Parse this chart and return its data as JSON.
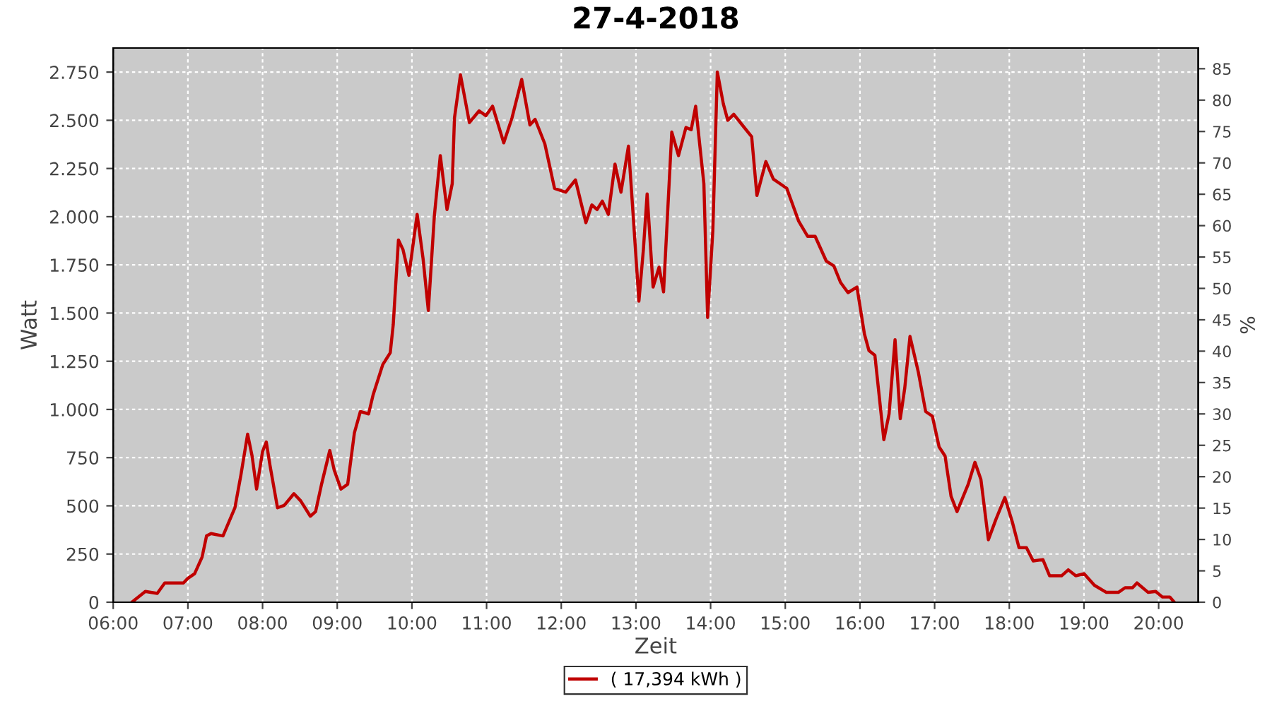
{
  "chart_data": {
    "type": "line",
    "title": "27-4-2018",
    "xlabel": "Zeit",
    "ylabel": "Watt",
    "y2label": "%",
    "x": [
      6.25,
      6.43,
      6.59,
      6.69,
      6.94,
      7.0,
      7.09,
      7.19,
      7.25,
      7.31,
      7.47,
      7.63,
      7.71,
      7.8,
      7.86,
      7.92,
      8.0,
      8.05,
      8.1,
      8.2,
      8.29,
      8.42,
      8.51,
      8.64,
      8.71,
      8.79,
      8.9,
      8.96,
      9.05,
      9.14,
      9.23,
      9.31,
      9.42,
      9.48,
      9.61,
      9.71,
      9.75,
      9.82,
      9.88,
      9.96,
      10.07,
      10.15,
      10.22,
      10.3,
      10.38,
      10.47,
      10.54,
      10.57,
      10.65,
      10.77,
      10.9,
      10.99,
      11.08,
      11.23,
      11.34,
      11.47,
      11.58,
      11.65,
      11.78,
      11.91,
      12.06,
      12.19,
      12.33,
      12.41,
      12.48,
      12.55,
      12.63,
      12.72,
      12.8,
      12.9,
      12.96,
      13.04,
      13.1,
      13.15,
      13.23,
      13.31,
      13.37,
      13.48,
      13.57,
      13.67,
      13.74,
      13.8,
      13.91,
      13.96,
      14.03,
      14.09,
      14.17,
      14.23,
      14.31,
      14.45,
      14.55,
      14.62,
      14.74,
      14.84,
      15.02,
      15.18,
      15.3,
      15.4,
      15.55,
      15.65,
      15.74,
      15.84,
      15.96,
      16.06,
      16.12,
      16.2,
      16.32,
      16.39,
      16.47,
      16.54,
      16.6,
      16.67,
      16.78,
      16.88,
      16.97,
      17.06,
      17.14,
      17.22,
      17.3,
      17.45,
      17.54,
      17.62,
      17.72,
      17.82,
      17.94,
      18.04,
      18.13,
      18.23,
      18.32,
      18.45,
      18.54,
      18.7,
      18.79,
      18.89,
      19.0,
      19.14,
      19.3,
      19.46,
      19.55,
      19.65,
      19.71,
      19.86,
      19.96,
      20.05,
      20.15,
      20.21
    ],
    "series": [
      {
        "name": "( 17,394 kWh )",
        "color": "#c00000",
        "values": [
          0,
          56,
          46,
          100,
          100,
          124,
          148,
          234,
          344,
          356,
          344,
          490,
          660,
          872,
          758,
          587,
          782,
          831,
          709,
          490,
          502,
          563,
          526,
          446,
          470,
          612,
          787,
          685,
          587,
          612,
          879,
          989,
          977,
          1075,
          1233,
          1294,
          1440,
          1879,
          1830,
          1696,
          2012,
          1781,
          1513,
          2001,
          2317,
          2037,
          2171,
          2512,
          2736,
          2488,
          2549,
          2524,
          2573,
          2383,
          2512,
          2712,
          2476,
          2505,
          2378,
          2147,
          2127,
          2191,
          1969,
          2061,
          2037,
          2081,
          2012,
          2273,
          2127,
          2366,
          2025,
          1562,
          1830,
          2118,
          1635,
          1738,
          1610,
          2439,
          2317,
          2463,
          2451,
          2573,
          2171,
          1477,
          1928,
          2751,
          2586,
          2500,
          2531,
          2463,
          2415,
          2110,
          2286,
          2195,
          2147,
          1976,
          1898,
          1898,
          1769,
          1745,
          1659,
          1606,
          1635,
          1391,
          1306,
          1281,
          843,
          977,
          1362,
          952,
          1111,
          1379,
          1197,
          989,
          965,
          806,
          758,
          550,
          470,
          612,
          726,
          636,
          324,
          429,
          543,
          417,
          283,
          283,
          214,
          221,
          137,
          137,
          168,
          137,
          148,
          88,
          51,
          51,
          75,
          75,
          100,
          51,
          56,
          27,
          27,
          0
        ]
      }
    ],
    "xlim": [
      6.0,
      20.53
    ],
    "xticks": [
      {
        "value": 6,
        "label": "06:00"
      },
      {
        "value": 7,
        "label": "07:00"
      },
      {
        "value": 8,
        "label": "08:00"
      },
      {
        "value": 9,
        "label": "09:00"
      },
      {
        "value": 10,
        "label": "10:00"
      },
      {
        "value": 11,
        "label": "11:00"
      },
      {
        "value": 12,
        "label": "12:00"
      },
      {
        "value": 13,
        "label": "13:00"
      },
      {
        "value": 14,
        "label": "14:00"
      },
      {
        "value": 15,
        "label": "15:00"
      },
      {
        "value": 16,
        "label": "16:00"
      },
      {
        "value": 17,
        "label": "17:00"
      },
      {
        "value": 18,
        "label": "18:00"
      },
      {
        "value": 19,
        "label": "19:00"
      },
      {
        "value": 20,
        "label": "20:00"
      }
    ],
    "ylim": [
      0,
      2875
    ],
    "yticks": [
      0,
      250,
      500,
      750,
      {
        "value": 1000,
        "label": "1.000"
      },
      {
        "value": 1250,
        "label": "1.250"
      },
      {
        "value": 1500,
        "label": "1.500"
      },
      {
        "value": 1750,
        "label": "1.750"
      },
      {
        "value": 2000,
        "label": "2.000"
      },
      {
        "value": 2250,
        "label": "2.250"
      },
      {
        "value": 2500,
        "label": "2.500"
      },
      {
        "value": 2750,
        "label": "2.750"
      }
    ],
    "y2lim": [
      0,
      88.3
    ],
    "y2ticks": [
      0,
      5,
      10,
      15,
      20,
      25,
      30,
      35,
      40,
      45,
      50,
      55,
      60,
      65,
      70,
      75,
      80,
      85
    ],
    "grid": true,
    "legend": "bottom",
    "marker": "none",
    "line_style": "solid"
  }
}
